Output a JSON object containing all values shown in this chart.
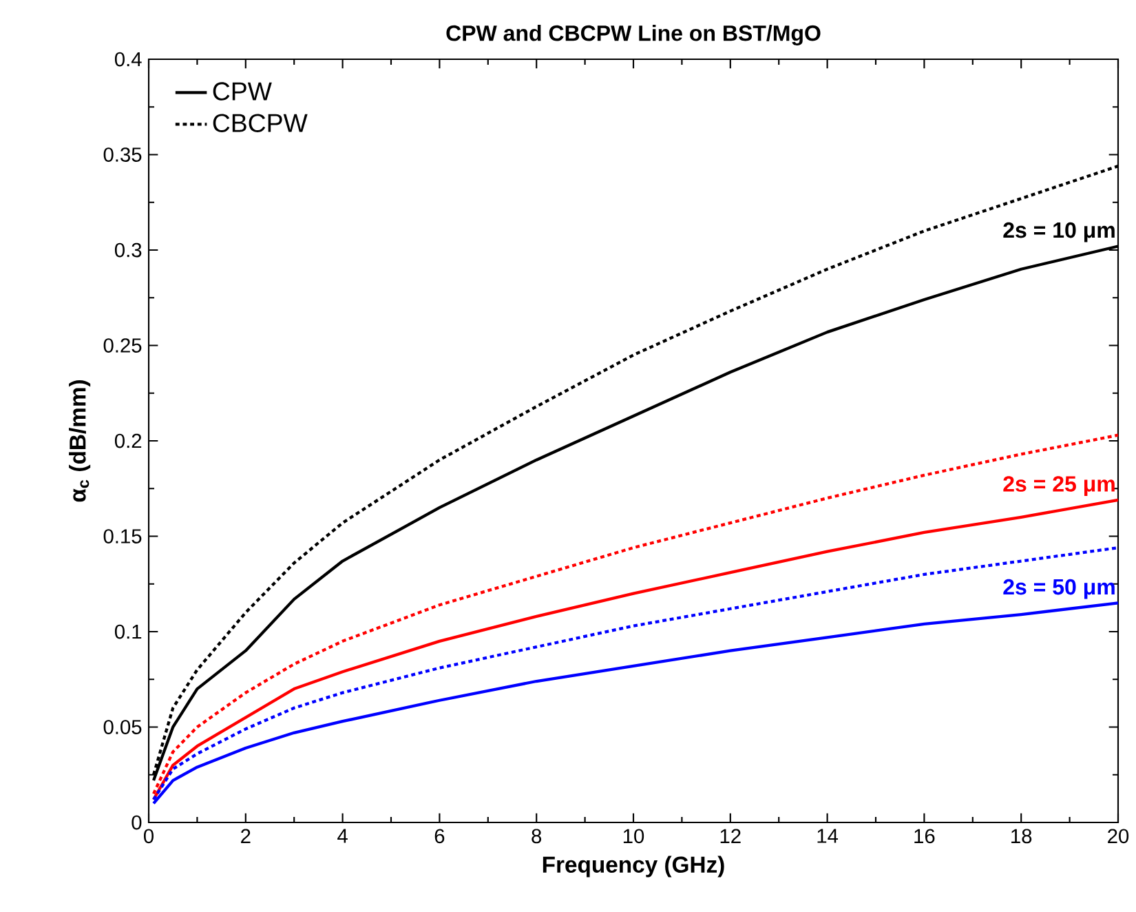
{
  "chart_data": {
    "type": "line",
    "title": "CPW and CBCPW Line on BST/MgO",
    "xlabel": "Frequency (GHz)",
    "ylabel": "α$_{c}$ (dB/mm)",
    "x": [
      0.1,
      0.5,
      1,
      2,
      3,
      4,
      6,
      8,
      10,
      12,
      14,
      16,
      18,
      20
    ],
    "series": [
      {
        "name": "CPW",
        "color": "#000000",
        "line_style": "solid",
        "values": [
          0.022,
          0.05,
          0.07,
          0.09,
          0.117,
          0.137,
          0.165,
          0.19,
          0.213,
          0.236,
          0.257,
          0.274,
          0.29,
          0.302
        ]
      },
      {
        "name": "CBCPW",
        "color": "#000000",
        "line_style": "dotted",
        "values": [
          0.025,
          0.06,
          0.08,
          0.11,
          0.136,
          0.157,
          0.19,
          0.218,
          0.245,
          0.268,
          0.29,
          0.31,
          0.327,
          0.344
        ]
      },
      {
        "color": "#ff0000",
        "line_style": "solid",
        "values": [
          0.012,
          0.03,
          0.04,
          0.055,
          0.07,
          0.079,
          0.095,
          0.108,
          0.12,
          0.131,
          0.142,
          0.152,
          0.16,
          0.169
        ]
      },
      {
        "color": "#ff0000",
        "line_style": "dotted",
        "values": [
          0.015,
          0.037,
          0.05,
          0.068,
          0.083,
          0.095,
          0.114,
          0.129,
          0.144,
          0.157,
          0.17,
          0.182,
          0.193,
          0.203
        ]
      },
      {
        "color": "#0000ff",
        "line_style": "solid",
        "values": [
          0.01,
          0.022,
          0.029,
          0.039,
          0.047,
          0.053,
          0.064,
          0.074,
          0.082,
          0.09,
          0.097,
          0.104,
          0.109,
          0.115
        ]
      },
      {
        "color": "#0000ff",
        "line_style": "dotted",
        "values": [
          0.012,
          0.028,
          0.036,
          0.049,
          0.06,
          0.068,
          0.081,
          0.092,
          0.103,
          0.112,
          0.121,
          0.13,
          0.137,
          0.144
        ]
      }
    ],
    "annotations": [
      "2s = 10 μm",
      "2s = 25 μm",
      "2s = 50 μm"
    ],
    "xlim": [
      0,
      20
    ],
    "ylim": [
      0,
      0.4
    ],
    "xticks": [
      0,
      2,
      4,
      6,
      8,
      10,
      12,
      14,
      16,
      18,
      20
    ],
    "yticks": [
      0,
      0.05,
      0.1,
      0.15,
      0.2,
      0.25,
      0.3,
      0.35,
      0.4
    ],
    "grid": false,
    "legend": "top left",
    "marker": "none"
  }
}
